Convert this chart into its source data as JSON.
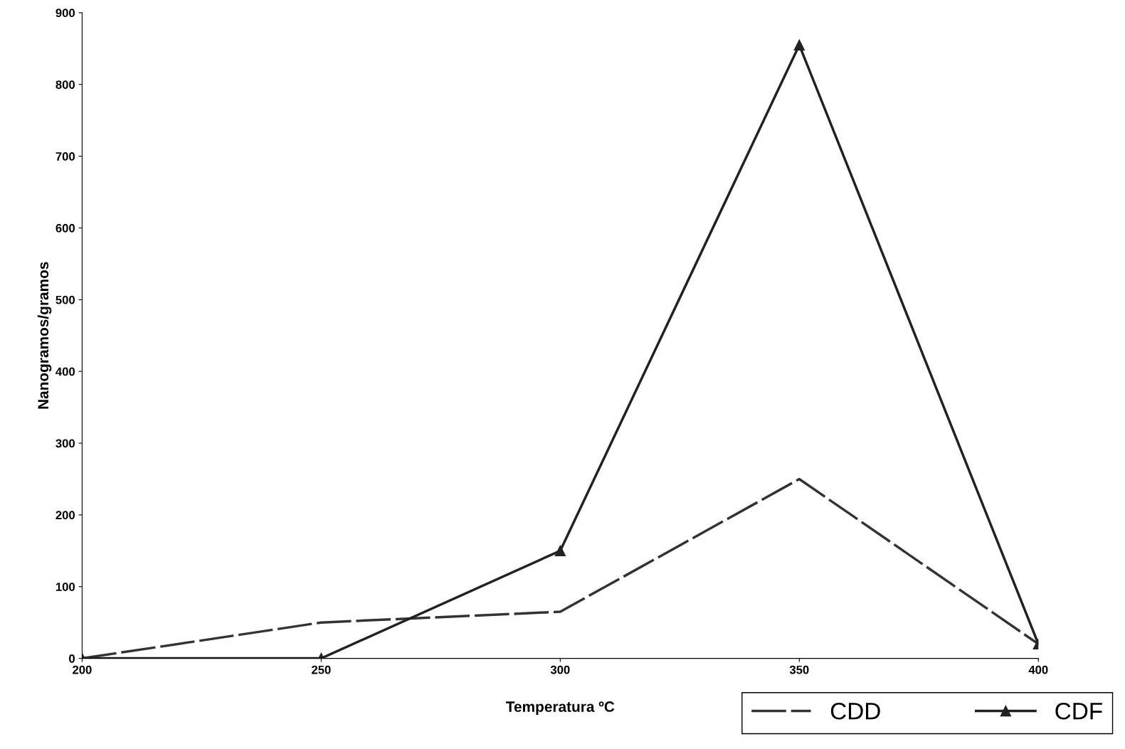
{
  "chart_data": {
    "type": "line",
    "xlabel": "Temperatura ºC",
    "ylabel": "Nanogramos/gramos",
    "x": [
      200,
      250,
      300,
      350,
      400
    ],
    "series": [
      {
        "name": "CDD",
        "color": "#333333",
        "values": [
          0,
          50,
          65,
          250,
          20
        ],
        "line_style": "dashed",
        "marker": "none"
      },
      {
        "name": "CDF",
        "color": "#222222",
        "values": [
          0,
          0,
          150,
          855,
          20
        ],
        "line_style": "solid",
        "marker": "triangle"
      }
    ],
    "xlim": [
      200,
      400
    ],
    "xticks": [
      200,
      250,
      300,
      350,
      400
    ],
    "ylim": [
      0,
      900
    ],
    "yticks": [
      0,
      100,
      200,
      300,
      400,
      500,
      600,
      700,
      800,
      900
    ],
    "grid": false,
    "legend": "bottom right"
  }
}
